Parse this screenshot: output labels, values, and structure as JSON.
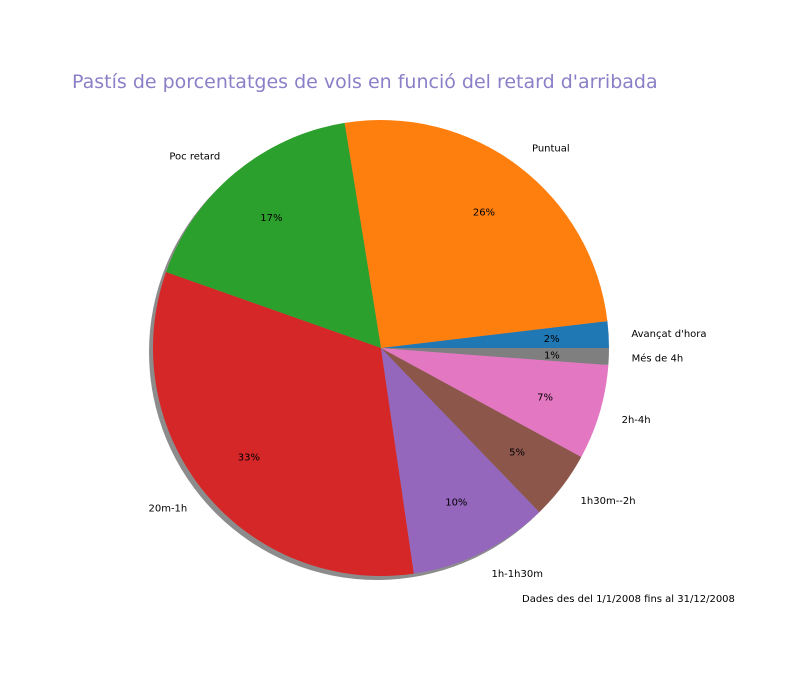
{
  "chart_data": {
    "type": "pie",
    "title": "Pastís de porcentatges de vols en funció del retard d'arribada",
    "title_color": "#8a80c8",
    "footnote": "Dades des del 1/1/2008 fins al 31/12/2008",
    "shadow": true,
    "start_angle_deg": 0,
    "direction": "counterclockwise",
    "slices": [
      {
        "label": "Avançat d'hora",
        "value": 1.9,
        "pct_label": "2%",
        "color": "#1f77b4"
      },
      {
        "label": "Puntual",
        "value": 25.9,
        "pct_label": "26%",
        "color": "#ff7f0e"
      },
      {
        "label": "Poc retard",
        "value": 17.2,
        "pct_label": "17%",
        "color": "#2ca02c"
      },
      {
        "label": "20m-1h",
        "value": 33.0,
        "pct_label": "33%",
        "color": "#d62728"
      },
      {
        "label": "1h-1h30m",
        "value": 10.0,
        "pct_label": "10%",
        "color": "#9467bd"
      },
      {
        "label": "1h30m--2h",
        "value": 4.9,
        "pct_label": "5%",
        "color": "#8c564b"
      },
      {
        "label": "2h-4h",
        "value": 6.8,
        "pct_label": "7%",
        "color": "#e377c2"
      },
      {
        "label": "Més de 4h",
        "value": 1.2,
        "pct_label": "1%",
        "color": "#7f7f7f"
      }
    ]
  }
}
